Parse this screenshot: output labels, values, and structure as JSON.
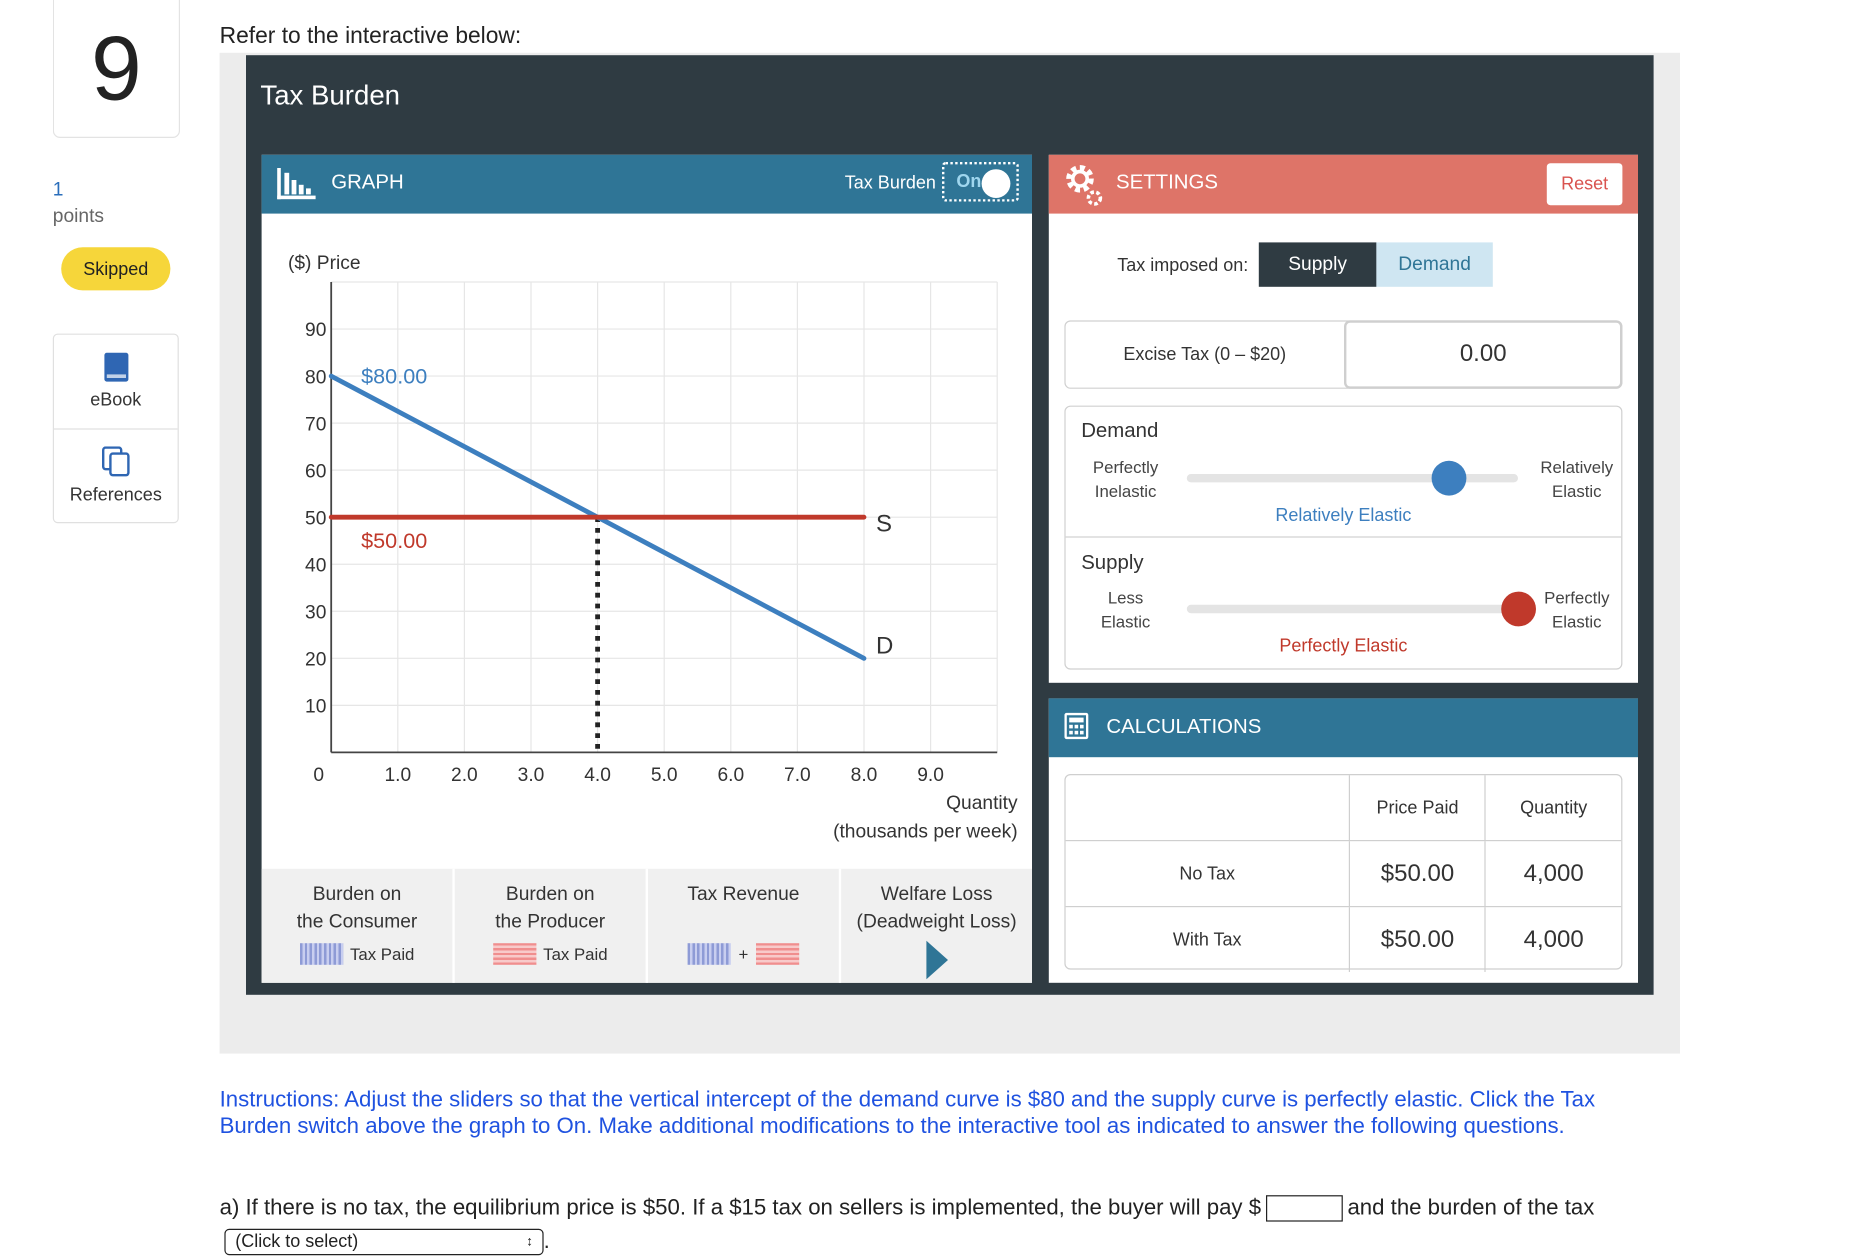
{
  "question": {
    "number": "9",
    "points_value": "1",
    "points_label": "points",
    "status": "Skipped",
    "tools": [
      {
        "label": "eBook",
        "icon": "book-icon"
      },
      {
        "label": "References",
        "icon": "copy-icon"
      }
    ],
    "prompt": "Refer to the interactive below:"
  },
  "widget": {
    "title": "Tax Burden",
    "graph_header": {
      "title": "GRAPH",
      "toggle_label": "Tax Burden",
      "toggle_state": "On"
    },
    "settings_header": {
      "title": "SETTINGS",
      "reset_label": "Reset"
    },
    "calc_header": {
      "title": "CALCULATIONS"
    }
  },
  "chart_data": {
    "type": "line",
    "ylabel": "($) Price",
    "xlabel_line1": "Quantity",
    "xlabel_line2": "(thousands per week)",
    "xlim": [
      0,
      10
    ],
    "ylim": [
      0,
      100
    ],
    "x_ticks": [
      "1.0",
      "2.0",
      "3.0",
      "4.0",
      "5.0",
      "6.0",
      "7.0",
      "8.0",
      "9.0"
    ],
    "x_tick_values": [
      1,
      2,
      3,
      4,
      5,
      6,
      7,
      8,
      9
    ],
    "y_ticks": [
      "10",
      "20",
      "30",
      "40",
      "50",
      "60",
      "70",
      "80",
      "90"
    ],
    "y_tick_values": [
      10,
      20,
      30,
      40,
      50,
      60,
      70,
      80,
      90
    ],
    "origin_label": "0",
    "grid": true,
    "series": [
      {
        "name": "D",
        "color": "#3d7fbf",
        "points": [
          [
            0,
            80
          ],
          [
            8,
            20
          ]
        ]
      },
      {
        "name": "S",
        "color": "#c0392b",
        "points": [
          [
            0,
            50
          ],
          [
            8,
            50
          ]
        ]
      }
    ],
    "annotations": [
      {
        "text": "$80.00",
        "x": 0.45,
        "y": 80,
        "color": "#3d7fbf"
      },
      {
        "text": "$50.00",
        "x": 0.45,
        "y": 45,
        "color": "#c0392b"
      }
    ],
    "equilibrium_dropline": {
      "x": 4,
      "y_from": 50,
      "y_to": 0
    }
  },
  "burden": {
    "consumer": {
      "line1": "Burden on",
      "line2": "the Consumer",
      "small": "Tax Paid"
    },
    "producer": {
      "line1": "Burden on",
      "line2": "the Producer",
      "small": "Tax Paid"
    },
    "revenue": {
      "line1": "Tax Revenue",
      "plus": "+"
    },
    "welfare": {
      "line1": "Welfare Loss",
      "line2": "(Deadweight Loss)"
    }
  },
  "settings": {
    "tax_imposed_label": "Tax imposed on:",
    "options": [
      "Supply",
      "Demand"
    ],
    "selected": "Supply",
    "excise_label": "Excise Tax (0 – $20)",
    "excise_value": "0.00",
    "demand": {
      "label": "Demand",
      "left_1": "Perfectly",
      "left_2": "Inelastic",
      "right_1": "Relatively",
      "right_2": "Elastic",
      "value_label": "Relatively Elastic",
      "position": 0.79,
      "color": "#3d7fbf"
    },
    "supply": {
      "label": "Supply",
      "left_1": "Less",
      "left_2": "Elastic",
      "right_1": "Perfectly",
      "right_2": "Elastic",
      "value_label": "Perfectly Elastic",
      "position": 1.0,
      "color": "#c0392b"
    }
  },
  "calculations": {
    "headers": [
      "",
      "Price Paid",
      "Quantity"
    ],
    "rows": [
      {
        "label": "No Tax",
        "price": "$50.00",
        "quantity": "4,000"
      },
      {
        "label": "With Tax",
        "price": "$50.00",
        "quantity": "4,000"
      }
    ]
  },
  "instructions": "Instructions: Adjust the sliders so that the vertical intercept of the demand curve is $80 and the supply curve is perfectly elastic.  Click the Tax Burden switch above the graph to On.  Make additional modifications to the interactive tool as indicated to answer the following questions.",
  "part_a": {
    "text_before": "a) If there is no tax, the equilibrium price is $50.  If a $15 tax on sellers is implemented, the buyer will pay $",
    "text_after": "and the burden of the tax",
    "select_value": "(Click to select)",
    "end": "."
  }
}
